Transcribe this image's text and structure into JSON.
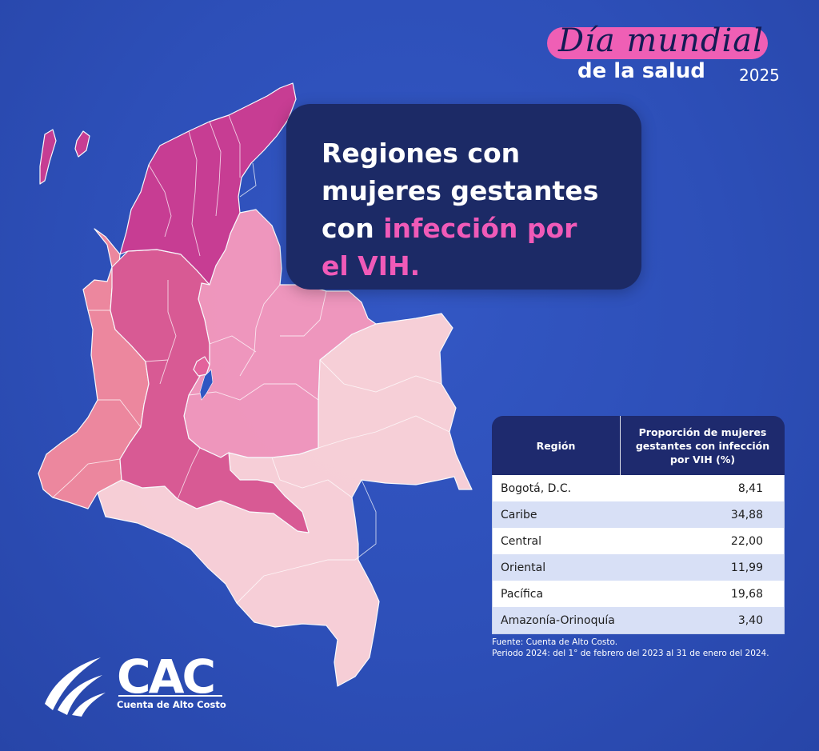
{
  "header": {
    "badge_script": "Día mundial",
    "badge_sub": "de la salud",
    "badge_year": "2025"
  },
  "title": {
    "line1": "Regiones con",
    "line2": "mujeres gestantes",
    "line3_a": "con ",
    "line3_b": "infección por",
    "line4": "el VIH."
  },
  "colors": {
    "caribe": "#cc3d92",
    "central": "#de5b93",
    "pacifica": "#f3899e",
    "oriental": "#f599bd",
    "amazonia_orinoquia": "#fdd3d8",
    "bogota": "#e9649b",
    "highlight": "#f05ab8",
    "panel": "#1c2a66"
  },
  "chart_data": {
    "type": "table",
    "columns": [
      "Región",
      "Proporción de mujeres gestantes con infección por VIH (%)"
    ],
    "rows": [
      {
        "region": "Bogotá, D.C.",
        "value": "8,41"
      },
      {
        "region": "Caribe",
        "value": "34,88"
      },
      {
        "region": "Central",
        "value": "22,00"
      },
      {
        "region": "Oriental",
        "value": "11,99"
      },
      {
        "region": "Pacífica",
        "value": "19,68"
      },
      {
        "region": "Amazonía-Orinoquía",
        "value": "3,40"
      }
    ]
  },
  "footer": {
    "source": "Fuente: Cuenta de Alto Costo.",
    "period": "Periodo 2024: del 1° de febrero del 2023 al 31 de enero del 2024."
  },
  "logo": {
    "text": "CAC",
    "subtitle": "Cuenta de Alto Costo"
  }
}
